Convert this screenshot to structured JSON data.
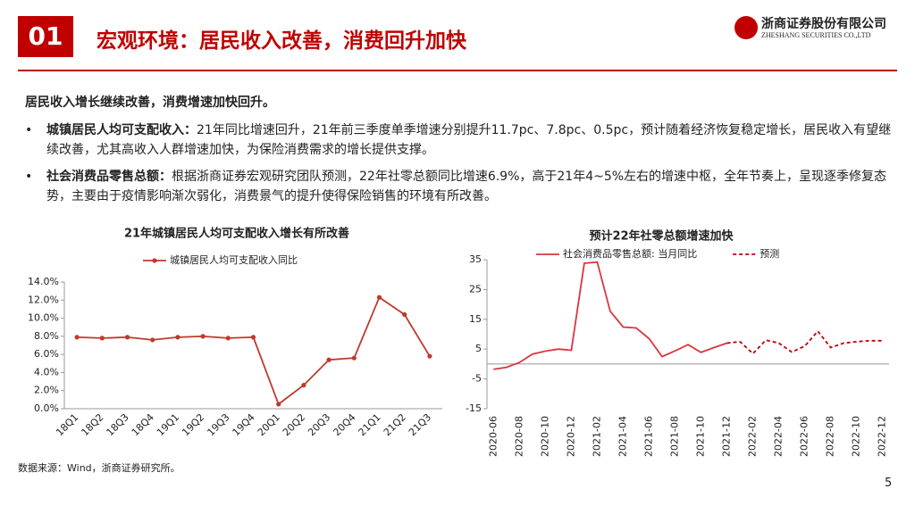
{
  "header": {
    "number": "01",
    "title": "宏观环境：居民收入改善，消费回升加快",
    "company": "浙商证券股份有限公司",
    "company_en": "ZHESHANG SECURITIES CO.,LTD"
  },
  "intro": "居民收入增长继续改善，消费增速加快回升。",
  "bullets": [
    {
      "label": "城镇居民人均可支配收入：",
      "text": "21年同比增速回升，21年前三季度单季增速分别提升11.7pc、7.8pc、0.5pc，预计随着经济恢复稳定增长，居民收入有望继续改善，尤其高收入人群增速加快，为保险消费需求的增长提供支撑。"
    },
    {
      "label": "社会消费品零售总额：",
      "text": "根据浙商证券宏观研究团队预测，22年社零总额同比增速6.9%，高于21年4~5%左右的增速中枢，全年节奏上，呈现逐季修复态势，主要由于疫情影响渐次弱化，消费景气的提升使得保险销售的环境有所改善。"
    }
  ],
  "chart_data": [
    {
      "type": "line",
      "title": "21年城镇居民人均可支配收入增长有所改善",
      "categories": [
        "18Q1",
        "18Q2",
        "18Q3",
        "18Q4",
        "19Q1",
        "19Q2",
        "19Q3",
        "19Q4",
        "20Q1",
        "20Q2",
        "20Q3",
        "20Q4",
        "21Q1",
        "21Q2",
        "21Q3"
      ],
      "series": [
        {
          "name": "城镇居民人均可支配收入同比",
          "color": "#c0392b",
          "values": [
            7.9,
            7.8,
            7.9,
            7.6,
            7.9,
            8.0,
            7.8,
            7.9,
            0.5,
            2.6,
            5.4,
            5.6,
            12.3,
            10.4,
            5.8
          ]
        }
      ],
      "ylim": [
        0,
        14
      ],
      "yticks": [
        {
          "value": 0,
          "label": "0.0%"
        },
        {
          "value": 2,
          "label": "2.0%"
        },
        {
          "value": 4,
          "label": "4.0%"
        },
        {
          "value": 6,
          "label": "6.0%"
        },
        {
          "value": 8,
          "label": "8.0%"
        },
        {
          "value": 10,
          "label": "10.0%"
        },
        {
          "value": 12,
          "label": "12.0%"
        },
        {
          "value": 14,
          "label": "14.0%"
        }
      ],
      "markers": true
    },
    {
      "type": "line",
      "title": "预计22年社零总额增速加快",
      "categories": [
        "2020-06",
        null,
        "2020-08",
        null,
        "2020-10",
        null,
        "2020-12",
        null,
        "2021-02",
        null,
        "2021-04",
        null,
        "2021-06",
        null,
        "2021-08",
        null,
        "2021-10",
        null,
        "2021-12",
        null,
        "2022-02",
        null,
        "2022-04",
        null,
        "2022-06",
        null,
        "2022-08",
        null,
        "2022-10",
        null,
        "2022-12"
      ],
      "series": [
        {
          "name": "社会消费品零售总额: 当月同比",
          "color": "#d9363e",
          "values": [
            -1.8,
            -1.1,
            0.5,
            3.3,
            4.3,
            5.0,
            4.6,
            33.8,
            34.2,
            17.7,
            12.4,
            12.1,
            8.5,
            2.5,
            4.4,
            6.5,
            3.9,
            5.5,
            7.0,
            null,
            null,
            null,
            null,
            null,
            null,
            null,
            null,
            null,
            null,
            null,
            null
          ]
        },
        {
          "name": "预测",
          "color": "#c00000",
          "dashed": true,
          "values": [
            null,
            null,
            null,
            null,
            null,
            null,
            null,
            null,
            null,
            null,
            null,
            null,
            null,
            null,
            null,
            null,
            null,
            null,
            7.0,
            7.5,
            3.5,
            8.0,
            7.0,
            4.0,
            6.0,
            11.0,
            5.5,
            7.0,
            7.5,
            7.8,
            7.8
          ]
        }
      ],
      "ylim": [
        -15,
        35
      ],
      "yticks": [
        -15,
        -5,
        5,
        15,
        25,
        35
      ],
      "markers": false
    }
  ],
  "source": "数据来源：Wind，浙商证券研究所。",
  "page": "5"
}
